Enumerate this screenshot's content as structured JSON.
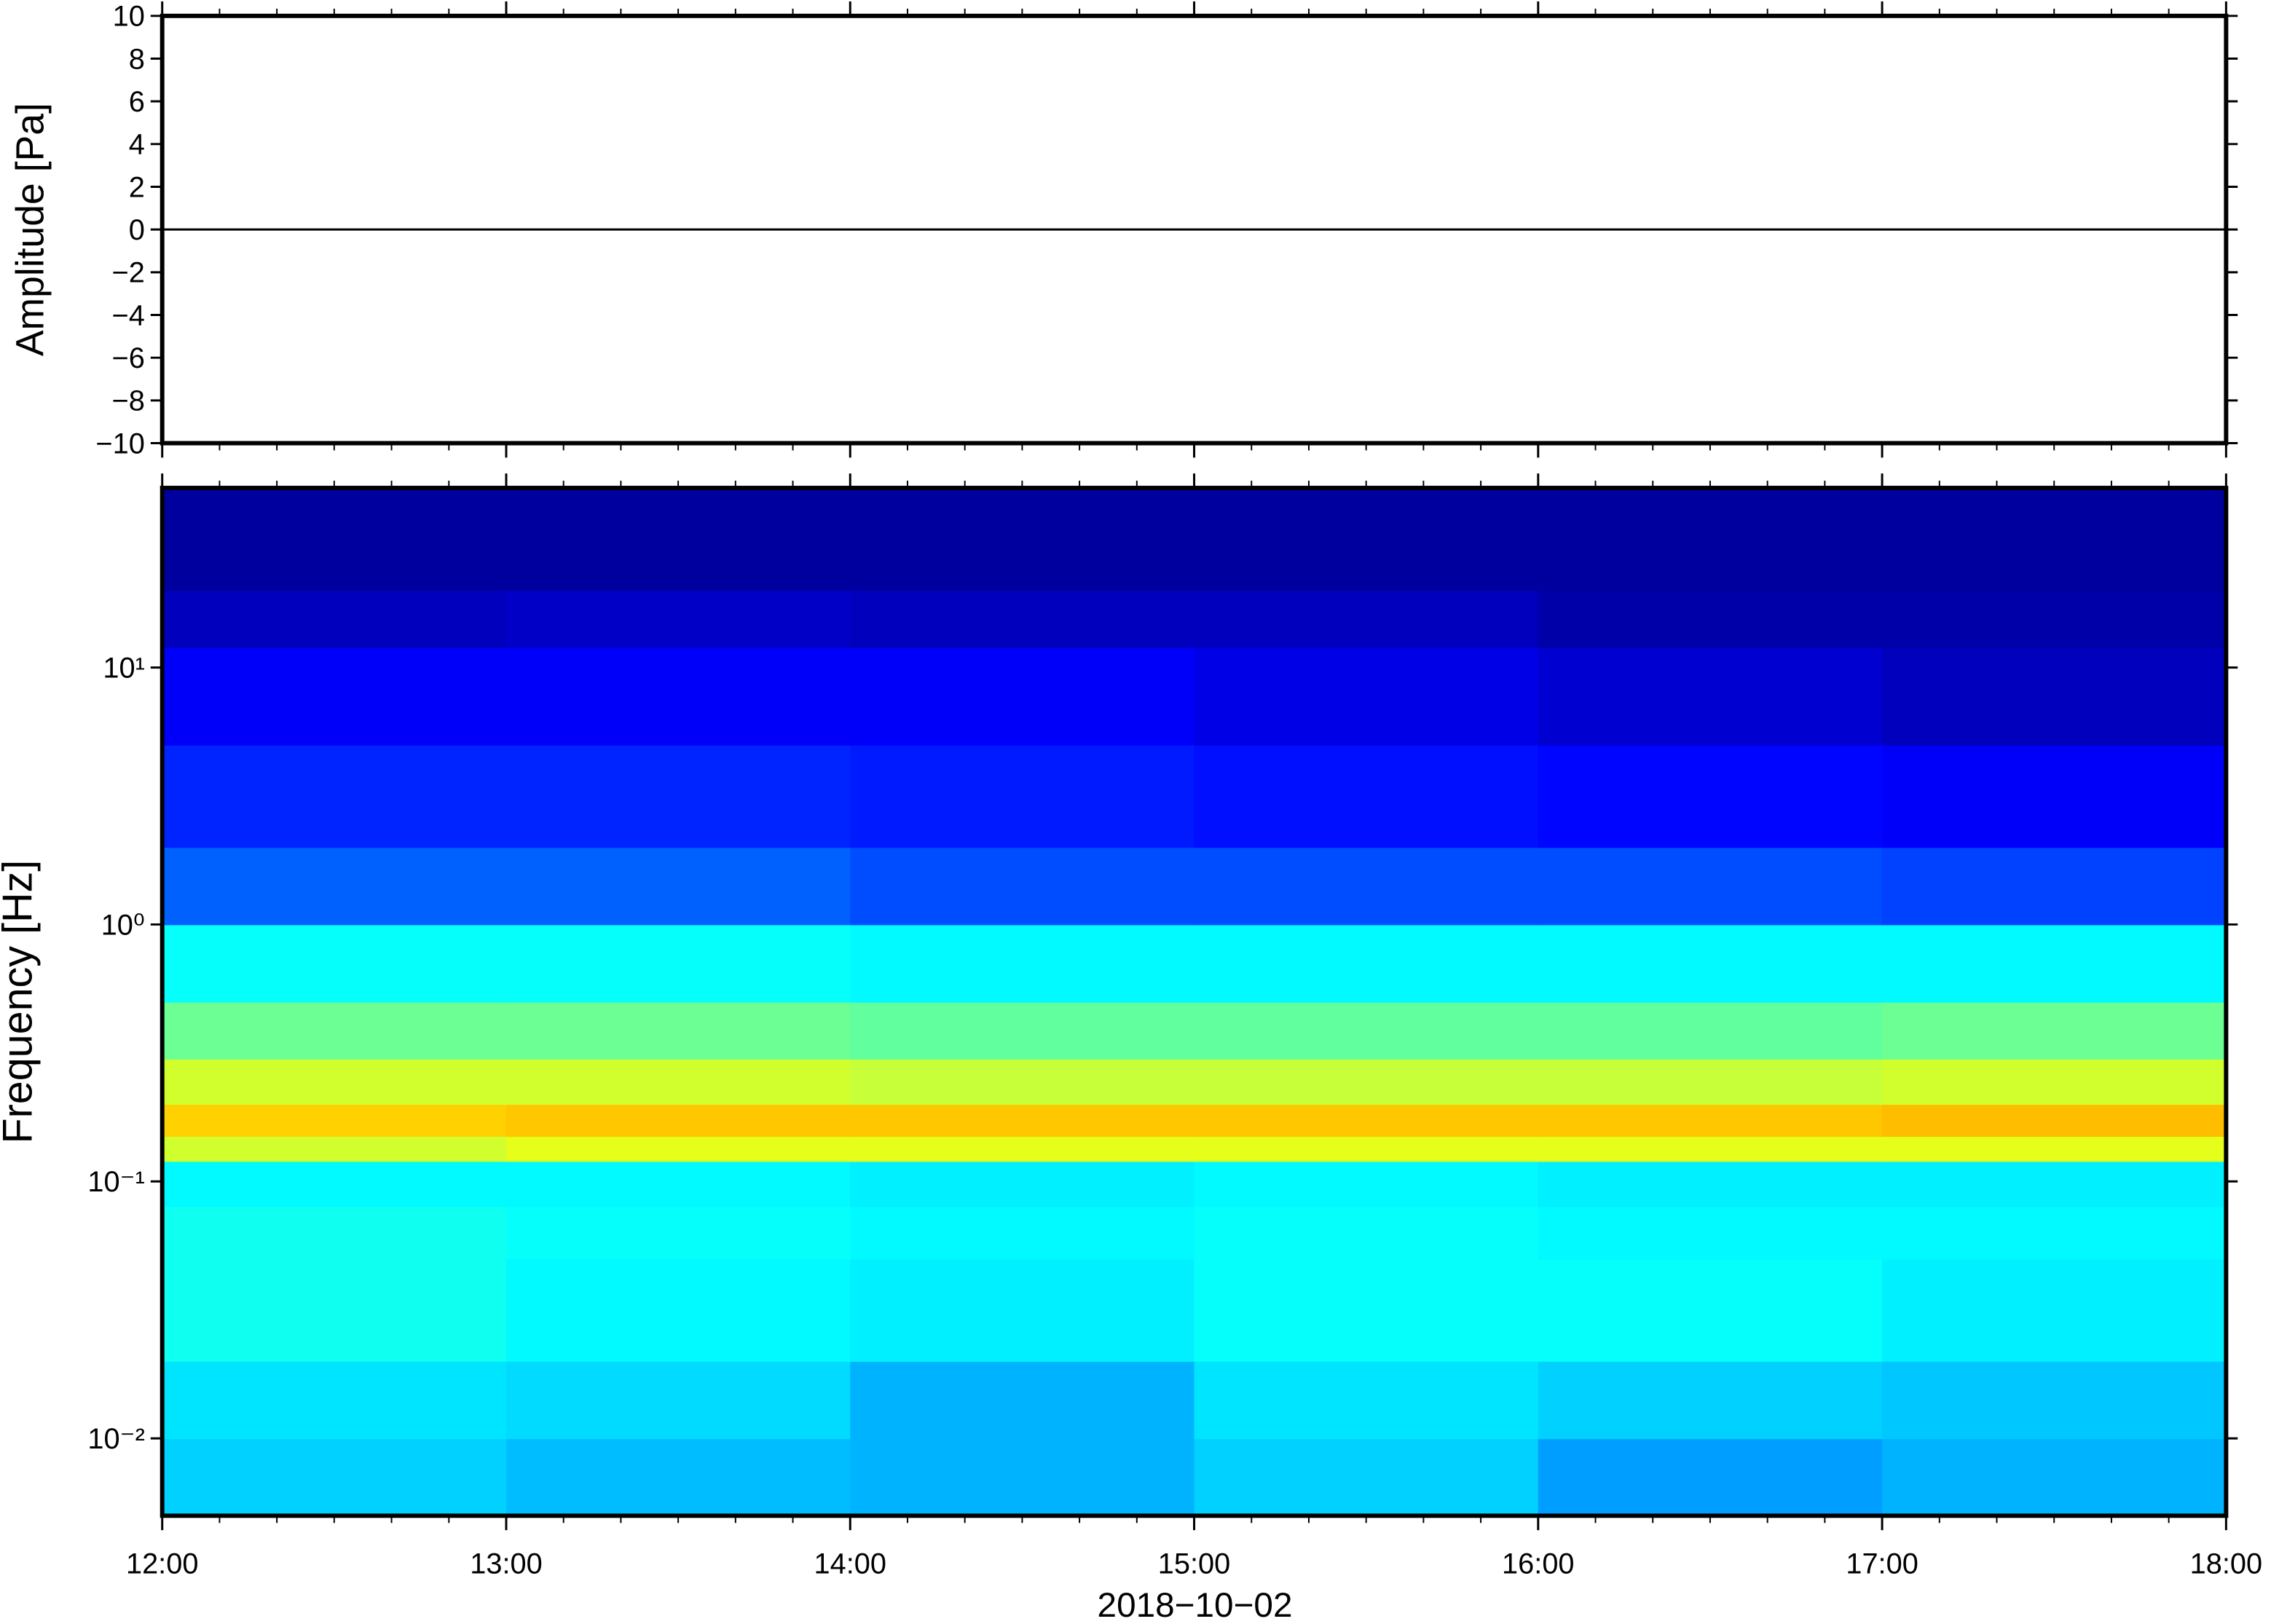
{
  "chart_data": [
    {
      "type": "line",
      "ylabel": "Amplitude [Pa]",
      "xlim": [
        12,
        18
      ],
      "ylim": [
        -10,
        10
      ],
      "yticks": [
        {
          "value": -10,
          "label": "−10"
        },
        {
          "value": -8,
          "label": "−8"
        },
        {
          "value": -6,
          "label": "−6"
        },
        {
          "value": -4,
          "label": "−4"
        },
        {
          "value": -2,
          "label": "−2"
        },
        0,
        2,
        4,
        6,
        8,
        10
      ],
      "series": [
        {
          "color": "#000000",
          "x": [
            12,
            13,
            14,
            15,
            16,
            17,
            18
          ],
          "values": [
            0,
            0,
            0,
            0,
            0,
            0,
            0
          ]
        }
      ]
    },
    {
      "type": "heatmap",
      "xlabel": "2018−10−02",
      "ylabel": "Frequency [Hz]",
      "xlim": [
        12,
        18
      ],
      "xticks": [
        {
          "value": 12,
          "label": "12:00"
        },
        {
          "value": 13,
          "label": "13:00"
        },
        {
          "value": 14,
          "label": "14:00"
        },
        {
          "value": 15,
          "label": "15:00"
        },
        {
          "value": 16,
          "label": "16:00"
        },
        {
          "value": 17,
          "label": "17:00"
        },
        {
          "value": 18,
          "label": "18:00"
        }
      ],
      "ylim": [
        0.005,
        50
      ],
      "log_y": true,
      "yticks": [
        {
          "value": 0.01,
          "label": "10⁻²"
        },
        {
          "value": 0.1,
          "label": "10⁻¹"
        },
        {
          "value": 1,
          "label": "10⁰"
        },
        {
          "value": 10,
          "label": "10¹"
        }
      ],
      "colormap": "jet",
      "zlim": [
        0,
        1
      ],
      "x_bins": [
        12,
        13,
        14,
        15,
        16,
        17,
        18
      ],
      "y_bins": [
        0.005,
        0.01,
        0.02,
        0.05,
        0.08,
        0.12,
        0.15,
        0.2,
        0.3,
        0.5,
        1,
        2,
        5,
        12,
        20,
        50
      ],
      "values": [
        [
          0.33,
          0.31,
          0.3,
          0.33,
          0.28,
          0.3
        ],
        [
          0.35,
          0.34,
          0.3,
          0.35,
          0.33,
          0.32
        ],
        [
          0.39,
          0.37,
          0.36,
          0.38,
          0.38,
          0.36
        ],
        [
          0.39,
          0.38,
          0.37,
          0.38,
          0.37,
          0.37
        ],
        [
          0.37,
          0.37,
          0.36,
          0.37,
          0.36,
          0.36
        ],
        [
          0.58,
          0.6,
          0.6,
          0.6,
          0.6,
          0.6
        ],
        [
          0.67,
          0.68,
          0.68,
          0.68,
          0.68,
          0.69
        ],
        [
          0.58,
          0.58,
          0.57,
          0.57,
          0.57,
          0.58
        ],
        [
          0.48,
          0.48,
          0.47,
          0.47,
          0.47,
          0.48
        ],
        [
          0.38,
          0.38,
          0.37,
          0.37,
          0.37,
          0.37
        ],
        [
          0.22,
          0.22,
          0.2,
          0.2,
          0.2,
          0.19
        ],
        [
          0.16,
          0.16,
          0.15,
          0.14,
          0.13,
          0.12
        ],
        [
          0.12,
          0.12,
          0.12,
          0.1,
          0.08,
          0.06
        ],
        [
          0.06,
          0.07,
          0.06,
          0.06,
          0.04,
          0.04
        ],
        [
          0.03,
          0.03,
          0.03,
          0.03,
          0.03,
          0.03
        ]
      ]
    }
  ]
}
